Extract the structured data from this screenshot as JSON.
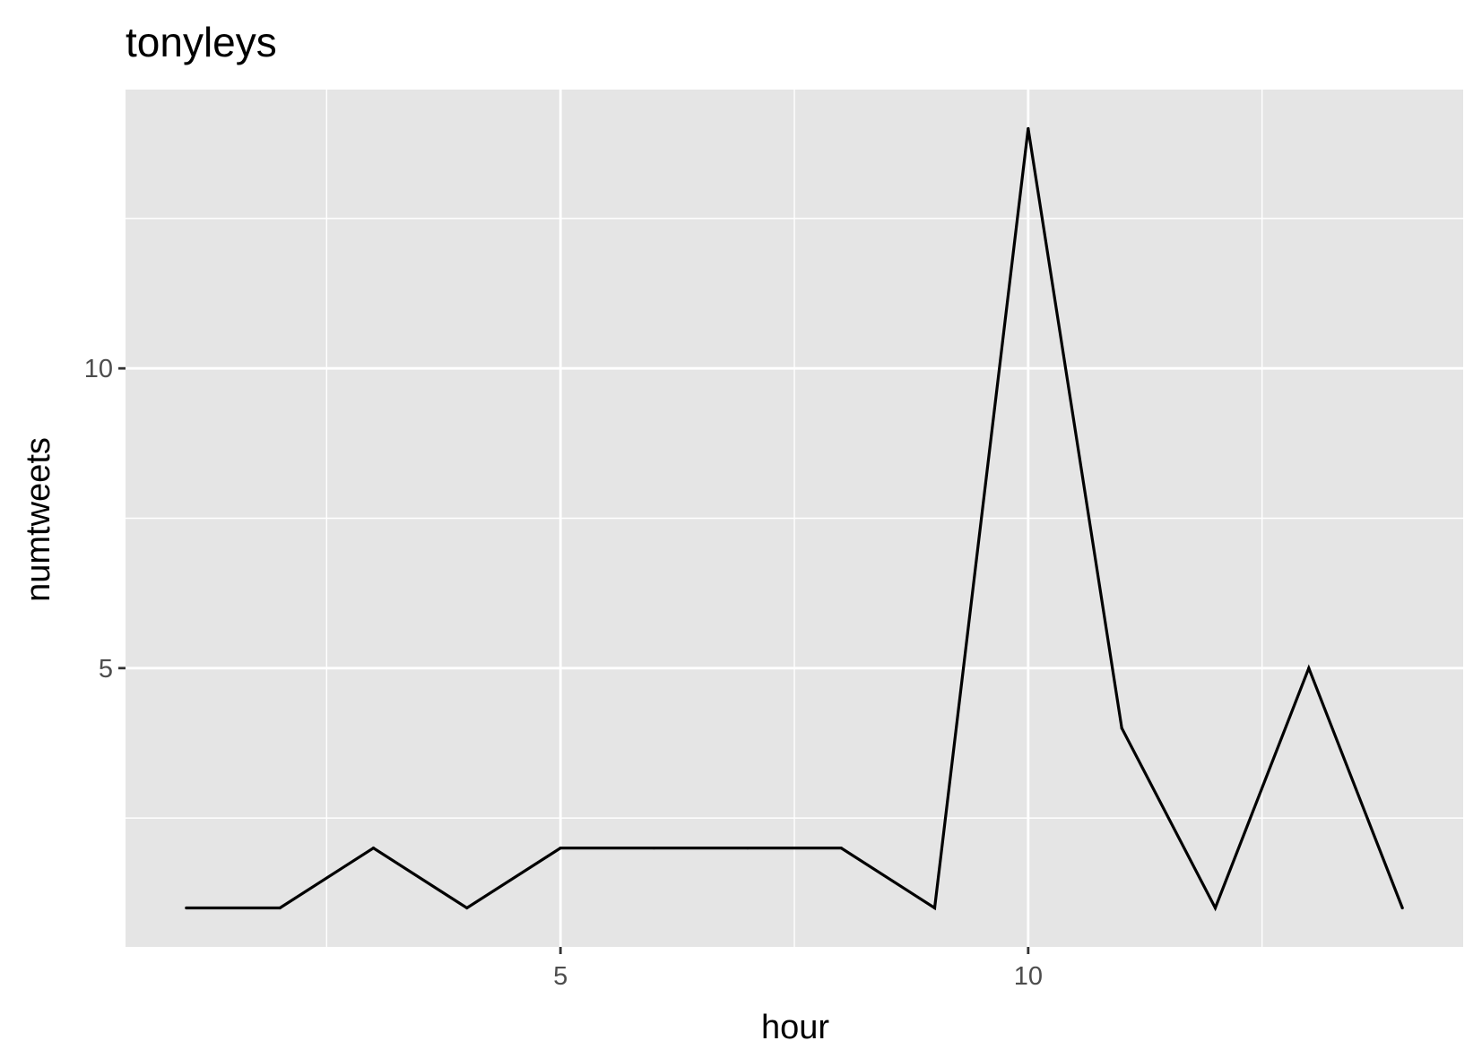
{
  "chart_data": {
    "type": "line",
    "title": "tonyleys",
    "xlabel": "hour",
    "ylabel": "numtweets",
    "x": [
      1,
      2,
      3,
      4,
      5,
      6,
      7,
      8,
      9,
      10,
      11,
      12,
      13,
      14
    ],
    "values": [
      1,
      1,
      2,
      1,
      2,
      2,
      2,
      2,
      1,
      14,
      4,
      1,
      5,
      1
    ],
    "xlim": [
      0.35,
      14.65
    ],
    "ylim": [
      0.35,
      14.65
    ],
    "x_ticks": [
      5,
      10
    ],
    "x_tick_labels": [
      "5",
      "10"
    ],
    "x_minor_ticks": [
      2.5,
      7.5,
      12.5
    ],
    "y_ticks": [
      5,
      10
    ],
    "y_tick_labels": [
      "5",
      "10"
    ],
    "y_minor_ticks": [
      2.5,
      7.5,
      12.5
    ],
    "grid": true,
    "legend": "none",
    "colors": {
      "panel_background": "#e5e5e5",
      "grid": "#ffffff",
      "line": "#000000",
      "tick_text": "#4d4d4d",
      "tick_mark": "#333333"
    }
  }
}
